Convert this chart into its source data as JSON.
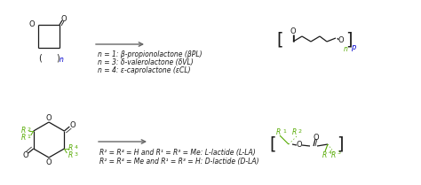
{
  "bg_color": "#ffffff",
  "text_color": "#1a1a1a",
  "green_color": "#55aa00",
  "blue_color": "#0000cc",
  "arrow_color": "#666666",
  "top_labels": [
    "n = 1: β-propionolactone (βPL)",
    "n = 3: δ-valerolactone (δVL)",
    "n = 4: ε-caprolactone (εCL)"
  ],
  "bottom_labels": [
    "R² = R⁴ = H and R¹ = R³ = Me: L‑lactide (L-LA)",
    "R² = R⁴ = Me and R¹ = R³ = H: D‑lactide (D-LA)"
  ],
  "figsize": [
    4.74,
    2.09
  ],
  "dpi": 100
}
